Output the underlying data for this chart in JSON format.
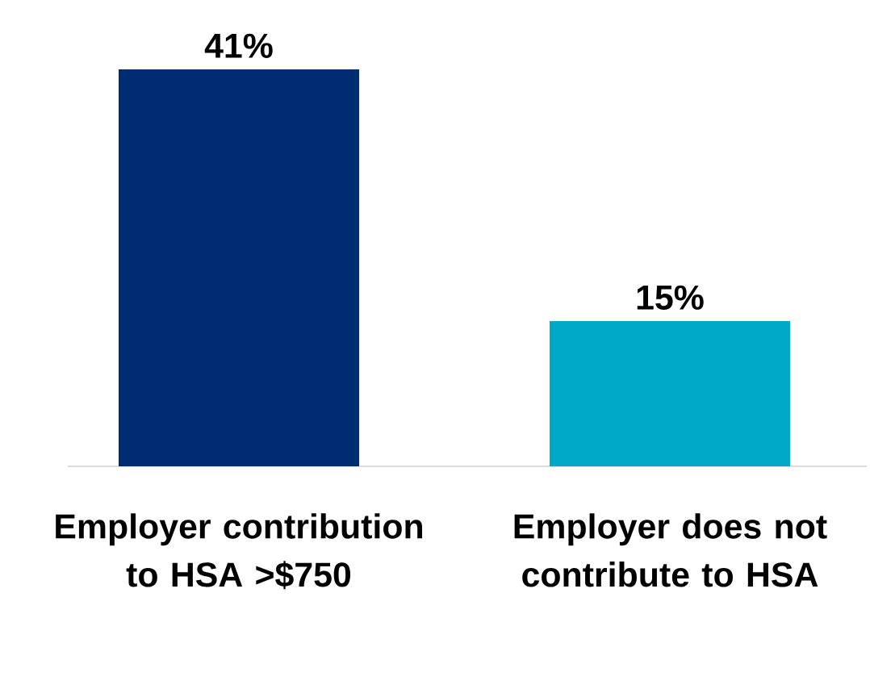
{
  "chart_data": {
    "type": "bar",
    "categories": [
      "Employer contribution to HSA >$750",
      "Employer does not contribute to HSA"
    ],
    "values": [
      41,
      15
    ],
    "colors": [
      "#002d72",
      "#00a9c8"
    ],
    "value_labels": [
      "41%",
      "15%"
    ]
  }
}
